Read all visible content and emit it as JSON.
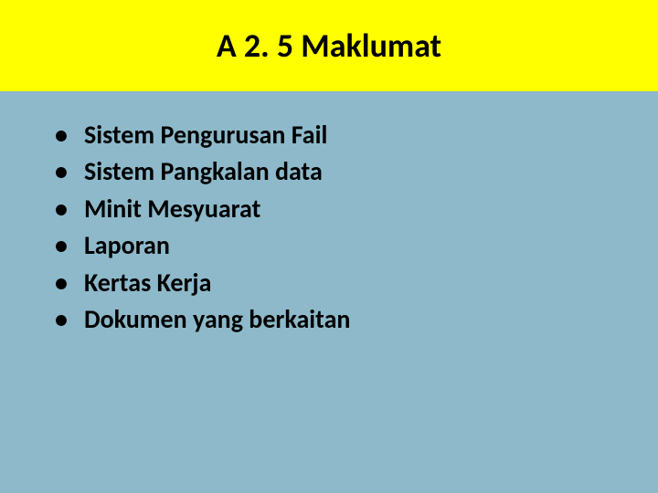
{
  "title": "A 2. 5 Maklumat",
  "title_fontsize": 36,
  "title_color": "#000000",
  "title_bg": "#ffff00",
  "content_bg": "#8db9ca",
  "bullet_fontsize": 28,
  "bullet_color": "#000000",
  "bullets": [
    "Sistem Pengurusan Fail",
    "Sistem Pangkalan data",
    "Minit Mesyuarat",
    "Laporan",
    "Kertas Kerja",
    "Dokumen yang berkaitan"
  ]
}
